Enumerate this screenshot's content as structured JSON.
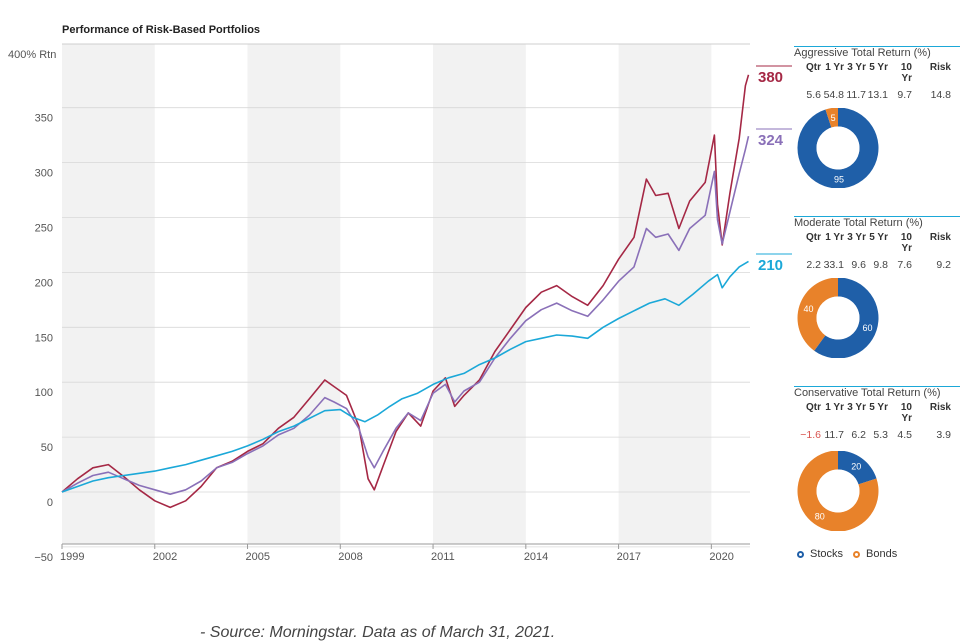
{
  "chart_data": {
    "type": "line",
    "title": "Performance of Risk-Based Portfolios",
    "ylabel_top": "400% Rtn",
    "ylim": [
      -55,
      400
    ],
    "xlim": [
      1999,
      2021.2
    ],
    "y_ticks": [
      -50,
      0,
      50,
      100,
      150,
      200,
      250,
      300,
      350
    ],
    "y_tick_labels": [
      "−50",
      "0",
      "50",
      "100",
      "150",
      "200",
      "250",
      "300",
      "350"
    ],
    "x_ticks": [
      1999,
      2002,
      2005,
      2008,
      2011,
      2014,
      2017,
      2020
    ],
    "x_tick_labels": [
      "1999",
      "2002",
      "2005",
      "2008",
      "2011",
      "2014",
      "2017",
      "2020"
    ],
    "shaded_bands": [
      [
        1999,
        2002
      ],
      [
        2005,
        2008
      ],
      [
        2011,
        2014
      ],
      [
        2017,
        2020
      ]
    ],
    "grid": true,
    "series": [
      {
        "name": "Aggressive",
        "color": "#a52845",
        "end_label": "380",
        "points": [
          [
            1999.0,
            0
          ],
          [
            1999.5,
            12
          ],
          [
            2000.0,
            22
          ],
          [
            2000.5,
            25
          ],
          [
            2001.0,
            14
          ],
          [
            2001.5,
            2
          ],
          [
            2002.0,
            -8
          ],
          [
            2002.5,
            -14
          ],
          [
            2003.0,
            -8
          ],
          [
            2003.5,
            5
          ],
          [
            2004.0,
            22
          ],
          [
            2004.5,
            28
          ],
          [
            2005.0,
            37
          ],
          [
            2005.5,
            44
          ],
          [
            2006.0,
            58
          ],
          [
            2006.5,
            68
          ],
          [
            2007.0,
            85
          ],
          [
            2007.5,
            102
          ],
          [
            2007.8,
            96
          ],
          [
            2008.2,
            88
          ],
          [
            2008.6,
            60
          ],
          [
            2008.9,
            12
          ],
          [
            2009.1,
            2
          ],
          [
            2009.4,
            25
          ],
          [
            2009.8,
            55
          ],
          [
            2010.2,
            72
          ],
          [
            2010.6,
            60
          ],
          [
            2011.0,
            92
          ],
          [
            2011.4,
            104
          ],
          [
            2011.7,
            78
          ],
          [
            2012.0,
            88
          ],
          [
            2012.5,
            102
          ],
          [
            2013.0,
            128
          ],
          [
            2013.5,
            148
          ],
          [
            2014.0,
            168
          ],
          [
            2014.5,
            182
          ],
          [
            2015.0,
            188
          ],
          [
            2015.5,
            178
          ],
          [
            2016.0,
            170
          ],
          [
            2016.5,
            188
          ],
          [
            2017.0,
            212
          ],
          [
            2017.5,
            232
          ],
          [
            2017.9,
            285
          ],
          [
            2018.2,
            270
          ],
          [
            2018.6,
            272
          ],
          [
            2018.95,
            240
          ],
          [
            2019.3,
            265
          ],
          [
            2019.8,
            282
          ],
          [
            2020.1,
            325
          ],
          [
            2020.2,
            262
          ],
          [
            2020.35,
            225
          ],
          [
            2020.6,
            272
          ],
          [
            2020.9,
            322
          ],
          [
            2021.1,
            370
          ],
          [
            2021.2,
            380
          ]
        ]
      },
      {
        "name": "Moderate",
        "color": "#8a70b8",
        "end_label": "324",
        "points": [
          [
            1999.0,
            0
          ],
          [
            1999.5,
            8
          ],
          [
            2000.0,
            15
          ],
          [
            2000.5,
            18
          ],
          [
            2001.0,
            12
          ],
          [
            2001.5,
            6
          ],
          [
            2002.0,
            2
          ],
          [
            2002.5,
            -2
          ],
          [
            2003.0,
            2
          ],
          [
            2003.5,
            10
          ],
          [
            2004.0,
            22
          ],
          [
            2004.5,
            27
          ],
          [
            2005.0,
            35
          ],
          [
            2005.5,
            42
          ],
          [
            2006.0,
            52
          ],
          [
            2006.5,
            58
          ],
          [
            2007.0,
            70
          ],
          [
            2007.5,
            86
          ],
          [
            2007.8,
            82
          ],
          [
            2008.2,
            76
          ],
          [
            2008.6,
            58
          ],
          [
            2008.9,
            32
          ],
          [
            2009.1,
            22
          ],
          [
            2009.4,
            38
          ],
          [
            2009.8,
            58
          ],
          [
            2010.2,
            72
          ],
          [
            2010.6,
            65
          ],
          [
            2011.0,
            90
          ],
          [
            2011.4,
            98
          ],
          [
            2011.7,
            82
          ],
          [
            2012.0,
            92
          ],
          [
            2012.5,
            100
          ],
          [
            2013.0,
            122
          ],
          [
            2013.5,
            140
          ],
          [
            2014.0,
            156
          ],
          [
            2014.5,
            166
          ],
          [
            2015.0,
            172
          ],
          [
            2015.5,
            165
          ],
          [
            2016.0,
            160
          ],
          [
            2016.5,
            175
          ],
          [
            2017.0,
            192
          ],
          [
            2017.5,
            205
          ],
          [
            2017.9,
            240
          ],
          [
            2018.2,
            232
          ],
          [
            2018.6,
            235
          ],
          [
            2018.95,
            220
          ],
          [
            2019.3,
            240
          ],
          [
            2019.8,
            252
          ],
          [
            2020.1,
            292
          ],
          [
            2020.2,
            248
          ],
          [
            2020.35,
            226
          ],
          [
            2020.6,
            255
          ],
          [
            2020.9,
            290
          ],
          [
            2021.1,
            312
          ],
          [
            2021.2,
            324
          ]
        ]
      },
      {
        "name": "Conservative",
        "color": "#1ba8d8",
        "end_label": "210",
        "points": [
          [
            1999.0,
            0
          ],
          [
            1999.5,
            5
          ],
          [
            2000.0,
            10
          ],
          [
            2000.5,
            13
          ],
          [
            2001.0,
            15
          ],
          [
            2001.5,
            17
          ],
          [
            2002.0,
            19
          ],
          [
            2002.5,
            22
          ],
          [
            2003.0,
            25
          ],
          [
            2003.5,
            29
          ],
          [
            2004.0,
            33
          ],
          [
            2004.5,
            37
          ],
          [
            2005.0,
            42
          ],
          [
            2005.5,
            48
          ],
          [
            2006.0,
            55
          ],
          [
            2006.5,
            60
          ],
          [
            2007.0,
            67
          ],
          [
            2007.5,
            74
          ],
          [
            2008.0,
            75
          ],
          [
            2008.4,
            68
          ],
          [
            2008.8,
            64
          ],
          [
            2009.2,
            70
          ],
          [
            2009.6,
            78
          ],
          [
            2010.0,
            85
          ],
          [
            2010.5,
            90
          ],
          [
            2011.0,
            98
          ],
          [
            2011.5,
            104
          ],
          [
            2012.0,
            108
          ],
          [
            2012.5,
            116
          ],
          [
            2013.0,
            122
          ],
          [
            2013.5,
            130
          ],
          [
            2014.0,
            137
          ],
          [
            2014.5,
            140
          ],
          [
            2015.0,
            143
          ],
          [
            2015.5,
            142
          ],
          [
            2016.0,
            140
          ],
          [
            2016.5,
            150
          ],
          [
            2017.0,
            158
          ],
          [
            2017.5,
            165
          ],
          [
            2018.0,
            172
          ],
          [
            2018.5,
            176
          ],
          [
            2018.95,
            170
          ],
          [
            2019.4,
            180
          ],
          [
            2019.9,
            192
          ],
          [
            2020.2,
            198
          ],
          [
            2020.35,
            186
          ],
          [
            2020.6,
            196
          ],
          [
            2020.9,
            205
          ],
          [
            2021.2,
            210
          ]
        ]
      }
    ]
  },
  "panels": [
    {
      "title": "Aggressive Total Return (%)",
      "headers": [
        "Qtr",
        "1 Yr",
        "3 Yr",
        "5 Yr",
        "10 Yr",
        "Risk"
      ],
      "values": [
        "5.6",
        "54.8",
        "11.7",
        "13.1",
        "9.7",
        "14.8"
      ],
      "stocks": 95,
      "bonds": 5,
      "stocks_label": "95",
      "bonds_label": "5"
    },
    {
      "title": "Moderate Total Return (%)",
      "headers": [
        "Qtr",
        "1 Yr",
        "3 Yr",
        "5 Yr",
        "10 Yr",
        "Risk"
      ],
      "values": [
        "2.2",
        "33.1",
        "9.6",
        "9.8",
        "7.6",
        "9.2"
      ],
      "stocks": 60,
      "bonds": 40,
      "stocks_label": "60",
      "bonds_label": "40"
    },
    {
      "title": "Conservative Total Return (%)",
      "headers": [
        "Qtr",
        "1 Yr",
        "3 Yr",
        "5 Yr",
        "10 Yr",
        "Risk"
      ],
      "values": [
        "−1.6",
        "11.7",
        "6.2",
        "5.3",
        "4.5",
        "3.9"
      ],
      "stocks": 20,
      "bonds": 80,
      "stocks_label": "20",
      "bonds_label": "80"
    }
  ],
  "colors": {
    "stocks": "#1f5fa8",
    "bonds": "#e8822a",
    "panel_rule": "#1ba8d8",
    "negative": "#d9534f"
  },
  "legend": {
    "stocks": "Stocks",
    "bonds": "Bonds"
  },
  "source_note": "- Source: Morningstar. Data as of March 31, 2021."
}
